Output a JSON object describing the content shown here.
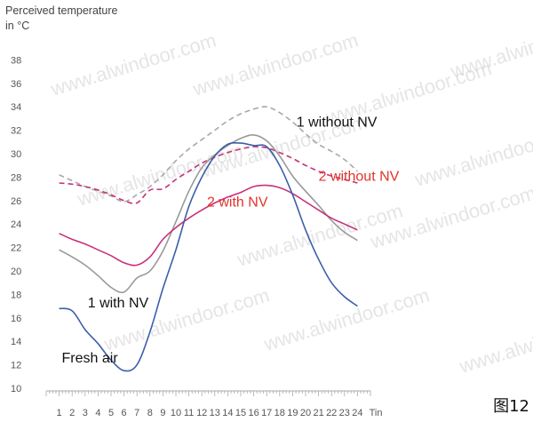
{
  "page": {
    "watermark": "www.alwindoor.com",
    "figure_label": "图12"
  },
  "chart_data": {
    "type": "line",
    "ylabel": "Perceived temperature",
    "yunit": "in °C",
    "xlabel": "Tin",
    "x": [
      1,
      2,
      3,
      4,
      5,
      6,
      7,
      8,
      9,
      10,
      11,
      12,
      13,
      14,
      15,
      16,
      17,
      18,
      19,
      20,
      21,
      22,
      23,
      24
    ],
    "yticks": [
      10,
      12,
      14,
      16,
      18,
      20,
      22,
      24,
      26,
      28,
      30,
      32,
      34,
      36,
      38
    ],
    "ylim": [
      10,
      39
    ],
    "xlim": [
      0,
      25
    ],
    "grid": false,
    "colors": {
      "gray": "#999999",
      "pink": "#c8317a",
      "blue": "#3b5fa8",
      "label_dark": "#111111",
      "label_red": "#e0342a"
    },
    "series": [
      {
        "name": "1 without NV",
        "color": "#a8a8a8",
        "dash": true,
        "label_color": "#111111",
        "label_x": 19.3,
        "label_y": 32.3,
        "values": [
          28.2,
          27.7,
          27.2,
          26.8,
          26.4,
          25.9,
          26.5,
          27.2,
          28.2,
          29.4,
          30.4,
          31.2,
          32.0,
          32.8,
          33.4,
          33.8,
          34.0,
          33.5,
          32.7,
          31.7,
          30.8,
          30.2,
          29.5,
          28.5
        ]
      },
      {
        "name": "2 without NV",
        "color": "#c8317a",
        "dash": true,
        "label_color": "#e0342a",
        "label_x": 21.0,
        "label_y": 27.7,
        "values": [
          27.5,
          27.4,
          27.2,
          26.9,
          26.5,
          26.0,
          25.8,
          26.9,
          27.0,
          27.8,
          28.5,
          29.2,
          29.7,
          30.1,
          30.4,
          30.6,
          30.5,
          30.1,
          29.6,
          29.0,
          28.5,
          28.1,
          27.8,
          27.5
        ]
      },
      {
        "name": "1 with NV",
        "color": "#999999",
        "dash": false,
        "label_color": "#111111",
        "label_x": 3.2,
        "label_y": 16.9,
        "values": [
          21.8,
          21.2,
          20.5,
          19.6,
          18.6,
          18.2,
          19.4,
          20.0,
          21.7,
          24.2,
          26.8,
          28.8,
          29.9,
          30.7,
          31.3,
          31.6,
          31.1,
          29.8,
          28.1,
          26.8,
          25.6,
          24.3,
          23.3,
          22.6
        ]
      },
      {
        "name": "2 with NV",
        "color": "#c8317a",
        "dash": false,
        "label_color": "#e0342a",
        "label_x": 12.4,
        "label_y": 25.5,
        "values": [
          23.2,
          22.7,
          22.3,
          21.8,
          21.3,
          20.7,
          20.5,
          21.2,
          22.7,
          23.7,
          24.5,
          25.2,
          25.8,
          26.3,
          26.7,
          27.2,
          27.3,
          27.1,
          26.6,
          25.9,
          25.2,
          24.5,
          24.0,
          23.5
        ]
      },
      {
        "name": "Fresh air",
        "color": "#3b5fa8",
        "dash": false,
        "label_color": "#111111",
        "label_x": 1.2,
        "label_y": 12.2,
        "values": [
          16.8,
          16.6,
          15.0,
          13.8,
          12.4,
          11.5,
          12.0,
          14.8,
          18.5,
          21.8,
          25.5,
          28.0,
          29.8,
          30.8,
          30.9,
          30.7,
          30.6,
          29.0,
          26.5,
          23.5,
          21.0,
          19.0,
          17.8,
          17.0
        ]
      }
    ]
  }
}
